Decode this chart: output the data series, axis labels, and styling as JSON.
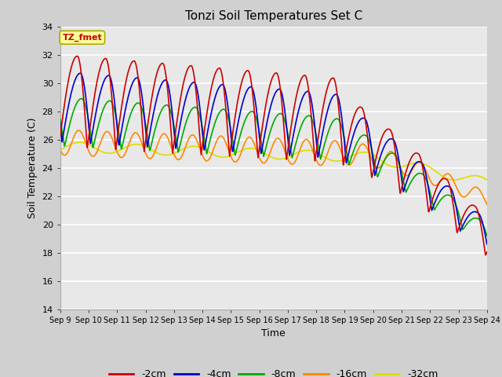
{
  "title": "Tonzi Soil Temperatures Set C",
  "xlabel": "Time",
  "ylabel": "Soil Temperature (C)",
  "ylim": [
    14,
    34
  ],
  "fig_bg": "#d0d0d0",
  "plot_bg": "#e8e8e8",
  "series_colors": [
    "#cc0000",
    "#0000cc",
    "#00aa00",
    "#ff8800",
    "#dddd00"
  ],
  "series_labels": [
    "-2cm",
    "-4cm",
    "-8cm",
    "-16cm",
    "-32cm"
  ],
  "annotation_text": "TZ_fmet",
  "annotation_bg": "#ffff99",
  "annotation_border": "#aaaa00",
  "annotation_color": "#cc0000",
  "x_ticks": [
    "Sep 9",
    "Sep 10",
    "Sep 11",
    "Sep 12",
    "Sep 13",
    "Sep 14",
    "Sep 15",
    "Sep 16",
    "Sep 17",
    "Sep 18",
    "Sep 19",
    "Sep 20",
    "Sep 21",
    "Sep 22",
    "Sep 23",
    "Sep 24"
  ],
  "num_points": 1440,
  "days": 15
}
